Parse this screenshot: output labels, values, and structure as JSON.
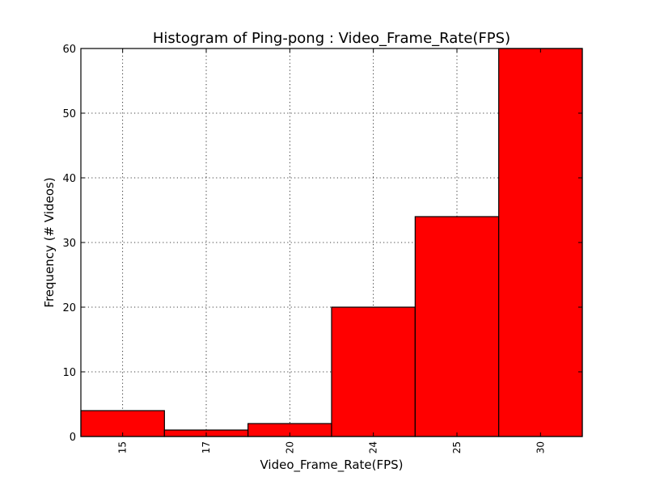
{
  "chart_data": {
    "type": "bar",
    "title": "Histogram of Ping-pong : Video_Frame_Rate(FPS)",
    "xlabel": "Video_Frame_Rate(FPS)",
    "ylabel": "Frequency (# Videos)",
    "categories": [
      "15",
      "17",
      "20",
      "24",
      "25",
      "30"
    ],
    "values": [
      4,
      1,
      2,
      20,
      34,
      60
    ],
    "ylim": [
      0,
      60
    ],
    "yticks": [
      "0",
      "10",
      "20",
      "30",
      "40",
      "50",
      "60"
    ],
    "grid": true,
    "bar_color": "#ff0000",
    "edge_color": "#000000"
  }
}
